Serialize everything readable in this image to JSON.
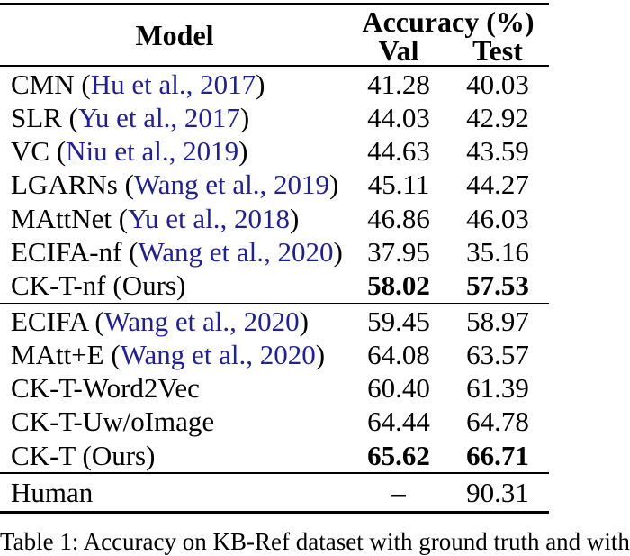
{
  "colors": {
    "background": "#ffffff",
    "text": "#000000",
    "rule": "#000000",
    "citation_link": "#1f1f9c"
  },
  "table": {
    "header": {
      "model": "Model",
      "accuracy": "Accuracy (%)",
      "val": "Val",
      "test": "Test"
    },
    "sections": [
      {
        "rows": [
          {
            "name": "CMN",
            "cite": "Hu et al., 2017",
            "val": "41.28",
            "test": "40.03",
            "bold": false
          },
          {
            "name": "SLR",
            "cite": "Yu et al., 2017",
            "val": "44.03",
            "test": "42.92",
            "bold": false
          },
          {
            "name": "VC",
            "cite": "Niu et al., 2019",
            "val": "44.63",
            "test": "43.59",
            "bold": false
          },
          {
            "name": "LGARNs",
            "cite": "Wang et al., 2019",
            "val": "45.11",
            "test": "44.27",
            "bold": false
          },
          {
            "name": "MAttNet",
            "cite": "Yu et al., 2018",
            "val": "46.86",
            "test": "46.03",
            "bold": false
          },
          {
            "name": "ECIFA-nf",
            "cite": "Wang et al., 2020",
            "val": "37.95",
            "test": "35.16",
            "bold": false
          },
          {
            "name": "CK-T-nf (Ours)",
            "cite": null,
            "val": "58.02",
            "test": "57.53",
            "bold": true
          }
        ]
      },
      {
        "rows": [
          {
            "name": "ECIFA",
            "cite": "Wang et al., 2020",
            "val": "59.45",
            "test": "58.97",
            "bold": false
          },
          {
            "name": "MAtt+E",
            "cite": "Wang et al., 2020",
            "val": "64.08",
            "test": "63.57",
            "bold": false
          },
          {
            "name": "CK-T-Word2Vec",
            "cite": null,
            "val": "60.40",
            "test": "61.39",
            "bold": false
          },
          {
            "name": "CK-T-Uw/oImage",
            "cite": null,
            "val": "64.44",
            "test": "64.78",
            "bold": false
          },
          {
            "name": "CK-T (Ours)",
            "cite": null,
            "val": "65.62",
            "test": "66.71",
            "bold": true
          }
        ]
      },
      {
        "rows": [
          {
            "name": "Human",
            "cite": null,
            "val": "–",
            "test": "90.31",
            "bold": false
          }
        ]
      }
    ]
  },
  "caption": "Table 1: Accuracy on KB-Ref dataset with ground truth and with"
}
